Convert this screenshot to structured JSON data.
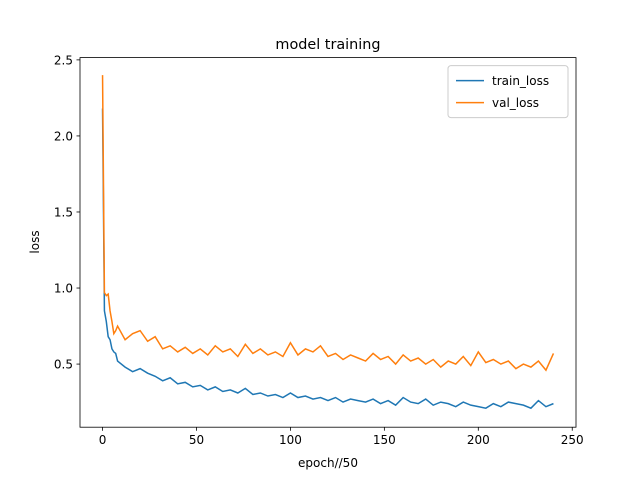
{
  "chart_data": {
    "type": "line",
    "title": "model training",
    "xlabel": "epoch//50",
    "ylabel": "loss",
    "x": [
      0,
      1,
      2,
      3,
      4,
      5,
      6,
      7,
      8,
      12,
      16,
      20,
      24,
      28,
      32,
      36,
      40,
      44,
      48,
      52,
      56,
      60,
      64,
      68,
      72,
      76,
      80,
      84,
      88,
      92,
      96,
      100,
      104,
      108,
      112,
      116,
      120,
      124,
      128,
      132,
      136,
      140,
      144,
      148,
      152,
      156,
      160,
      164,
      168,
      172,
      176,
      180,
      184,
      188,
      192,
      196,
      200,
      204,
      208,
      212,
      216,
      220,
      224,
      228,
      232,
      236,
      240
    ],
    "series": [
      {
        "name": "train_loss",
        "color": "#1f77b4",
        "values": [
          2.18,
          0.85,
          0.78,
          0.68,
          0.66,
          0.6,
          0.58,
          0.57,
          0.52,
          0.48,
          0.45,
          0.47,
          0.44,
          0.42,
          0.39,
          0.41,
          0.37,
          0.38,
          0.35,
          0.36,
          0.33,
          0.35,
          0.32,
          0.33,
          0.31,
          0.34,
          0.3,
          0.31,
          0.29,
          0.3,
          0.28,
          0.31,
          0.28,
          0.29,
          0.27,
          0.28,
          0.26,
          0.28,
          0.25,
          0.27,
          0.26,
          0.25,
          0.27,
          0.24,
          0.26,
          0.23,
          0.28,
          0.25,
          0.24,
          0.27,
          0.23,
          0.25,
          0.24,
          0.22,
          0.25,
          0.23,
          0.22,
          0.21,
          0.24,
          0.22,
          0.25,
          0.24,
          0.23,
          0.21,
          0.26,
          0.22,
          0.24
        ]
      },
      {
        "name": "val_loss",
        "color": "#ff7f0e",
        "values": [
          2.4,
          0.97,
          0.95,
          0.96,
          0.85,
          0.78,
          0.7,
          0.72,
          0.75,
          0.66,
          0.7,
          0.72,
          0.65,
          0.68,
          0.6,
          0.62,
          0.58,
          0.61,
          0.57,
          0.6,
          0.56,
          0.62,
          0.58,
          0.6,
          0.55,
          0.63,
          0.57,
          0.6,
          0.56,
          0.58,
          0.55,
          0.64,
          0.56,
          0.6,
          0.58,
          0.62,
          0.55,
          0.57,
          0.53,
          0.56,
          0.54,
          0.52,
          0.57,
          0.53,
          0.55,
          0.5,
          0.56,
          0.52,
          0.54,
          0.5,
          0.53,
          0.48,
          0.52,
          0.5,
          0.55,
          0.49,
          0.58,
          0.51,
          0.53,
          0.5,
          0.52,
          0.47,
          0.5,
          0.48,
          0.52,
          0.46,
          0.57
        ]
      }
    ],
    "xlim": [
      -12,
      252
    ],
    "xticks": [
      0,
      50,
      100,
      150,
      200,
      250
    ],
    "ylim": [
      0.085,
      2.515
    ],
    "yticks": [
      0.5,
      {
        "value": 1,
        "label": "1.0"
      },
      1.5,
      {
        "value": 2,
        "label": "2.0"
      },
      2.5
    ],
    "legend": "upper right"
  }
}
